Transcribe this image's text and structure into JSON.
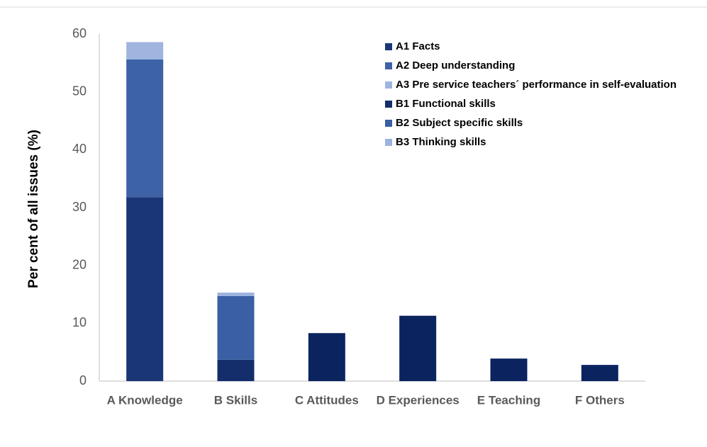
{
  "chart_data": {
    "type": "bar",
    "stacked": true,
    "ylabel": "Per cent of all issues (%)",
    "categories": [
      "A Knowledge",
      "B Skills",
      "C Attitudes",
      "D Experiences",
      "E Teaching",
      "F Others"
    ],
    "series": [
      {
        "name": "A1 Facts",
        "color": "#1b3676",
        "values": [
          31.8,
          null,
          null,
          null,
          null,
          null
        ]
      },
      {
        "name": "A2 Deep understanding",
        "color": "#3d62a6",
        "values": [
          23.8,
          null,
          null,
          null,
          null,
          null
        ]
      },
      {
        "name": "A3 Pre service teachers´ performance in self-evaluation",
        "color": "#9fb5e0",
        "values": [
          3.0,
          null,
          null,
          null,
          null,
          null
        ]
      },
      {
        "name": "B1 Functional skills",
        "color": "#132e6a",
        "values": [
          null,
          3.7,
          null,
          null,
          null,
          null
        ]
      },
      {
        "name": "B2 Subject specific skills",
        "color": "#3b5fa5",
        "values": [
          null,
          11.0,
          null,
          null,
          null,
          null
        ]
      },
      {
        "name": "B3 Thinking skills",
        "color": "#9db3df",
        "values": [
          null,
          0.6,
          null,
          null,
          null,
          null
        ]
      },
      {
        "color": "#0b2460",
        "values": [
          null,
          null,
          8.3,
          11.3,
          3.9,
          2.8
        ]
      }
    ],
    "ylim": [
      0,
      60
    ],
    "yticks": [
      0,
      10,
      20,
      30,
      40,
      50,
      60
    ],
    "grid": false,
    "legend": "top-right"
  }
}
